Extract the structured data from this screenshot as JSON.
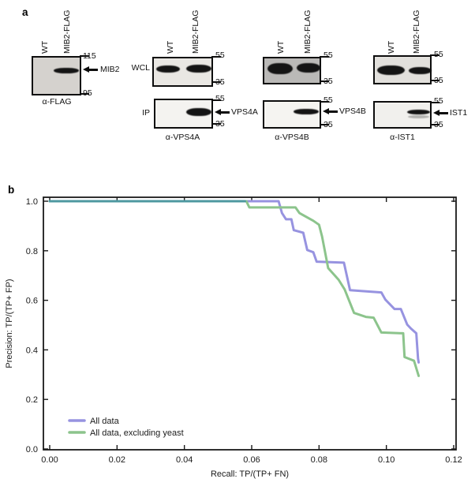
{
  "panel_a": {
    "label": "a",
    "lane_labels": [
      "WT",
      "MIB2-FLAG"
    ],
    "row_labels": {
      "wcl": "WCL",
      "ip": "IP"
    },
    "groups": [
      {
        "antibody": "α-FLAG",
        "markers": [
          "115",
          "95"
        ],
        "target": "MIB2"
      },
      {
        "antibody": "α-VPS4A",
        "markers": [
          "55",
          "35"
        ],
        "target": "VPS4A"
      },
      {
        "antibody": "α-VPS4B",
        "markers": [
          "55",
          "35"
        ],
        "target": "VPS4B"
      },
      {
        "antibody": "α-IST1",
        "markers": [
          "55",
          "35"
        ],
        "target": "IST1"
      }
    ]
  },
  "panel_b": {
    "label": "b"
  },
  "chart_data": {
    "type": "line",
    "title": "",
    "xlabel": "Recall: TP/(TP+ FN)",
    "ylabel": "Precision: TP/(TP+ FP)",
    "xlim": [
      0,
      0.12
    ],
    "ylim": [
      0,
      1.0
    ],
    "xticks": [
      0,
      0.02,
      0.04,
      0.06,
      0.08,
      0.1,
      0.12
    ],
    "xtick_labels": [
      "0.00",
      "0.02",
      "0.04",
      "0.06",
      "0.08",
      "0.10",
      "0.12"
    ],
    "yticks": [
      0,
      0.2,
      0.4,
      0.6,
      0.8,
      1.0
    ],
    "ytick_labels": [
      "0.0",
      "0.2",
      "0.4",
      "0.6",
      "0.8",
      "1.0"
    ],
    "grid": false,
    "legend_position": "lower left",
    "axis_color": "#1a1a1a",
    "overlap": {
      "end": 0.058,
      "precision": 1.0,
      "color": "#4e98a0"
    },
    "series": [
      {
        "name": "All data",
        "color": "#9793e0",
        "points": [
          [
            0.0,
            1.0
          ],
          [
            0.068,
            1.0
          ],
          [
            0.069,
            0.952
          ],
          [
            0.0702,
            0.927
          ],
          [
            0.0718,
            0.927
          ],
          [
            0.0725,
            0.883
          ],
          [
            0.0753,
            0.873
          ],
          [
            0.0765,
            0.803
          ],
          [
            0.0783,
            0.794
          ],
          [
            0.0793,
            0.756
          ],
          [
            0.0874,
            0.752
          ],
          [
            0.0892,
            0.641
          ],
          [
            0.0985,
            0.632
          ],
          [
            0.0997,
            0.603
          ],
          [
            0.1024,
            0.565
          ],
          [
            0.1043,
            0.565
          ],
          [
            0.1062,
            0.502
          ],
          [
            0.1073,
            0.486
          ],
          [
            0.1089,
            0.467
          ],
          [
            0.1094,
            0.365
          ],
          [
            0.1096,
            0.349
          ]
        ]
      },
      {
        "name": "All data, excluding yeast",
        "color": "#8cc48c",
        "points": [
          [
            0.0,
            1.0
          ],
          [
            0.0584,
            1.0
          ],
          [
            0.0593,
            0.975
          ],
          [
            0.073,
            0.975
          ],
          [
            0.0742,
            0.952
          ],
          [
            0.0783,
            0.921
          ],
          [
            0.08,
            0.905
          ],
          [
            0.0809,
            0.857
          ],
          [
            0.0827,
            0.73
          ],
          [
            0.0858,
            0.683
          ],
          [
            0.0876,
            0.644
          ],
          [
            0.0904,
            0.549
          ],
          [
            0.0939,
            0.533
          ],
          [
            0.0962,
            0.53
          ],
          [
            0.0985,
            0.47
          ],
          [
            0.105,
            0.467
          ],
          [
            0.1054,
            0.371
          ],
          [
            0.1082,
            0.356
          ],
          [
            0.1096,
            0.295
          ]
        ]
      }
    ]
  }
}
